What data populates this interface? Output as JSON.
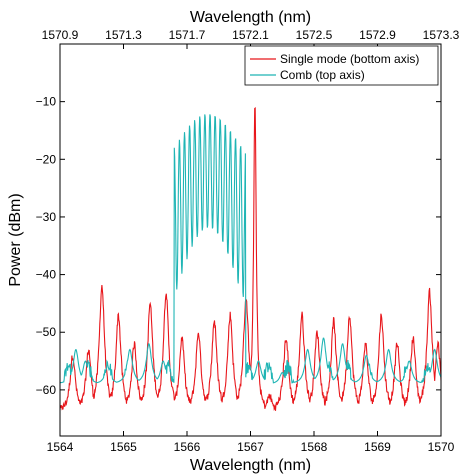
{
  "chart_data": {
    "type": "line",
    "xlabel_bottom": "Wavelength (nm)",
    "xlabel_top": "Wavelength (nm)",
    "ylabel": "Power (dBm)",
    "xlim_bottom": [
      1564,
      1570
    ],
    "xlim_top": [
      1570.9,
      1573.3
    ],
    "ylim": [
      -68,
      0
    ],
    "xticks_bottom": [
      "1564",
      "1565",
      "1566",
      "1567",
      "1568",
      "1569",
      "1570"
    ],
    "xticks_top": [
      "1570.9",
      "1571.3",
      "1571.7",
      "1572.1",
      "1572.5",
      "1572.9",
      "1573.3"
    ],
    "yticks": [
      "−10",
      "−20",
      "−30",
      "−40",
      "−50",
      "−60"
    ],
    "ytick_values": [
      -10,
      -20,
      -30,
      -40,
      -50,
      -60
    ],
    "grid": false,
    "legend_position": "top-right",
    "series": [
      {
        "name": "Single mode (bottom axis)",
        "axis": "bottom",
        "color": "#e8161b",
        "baseline": -64,
        "peak_width": 0.05,
        "peaks": [
          {
            "x": 1564.2,
            "y": -54
          },
          {
            "x": 1564.45,
            "y": -53
          },
          {
            "x": 1564.66,
            "y": -42
          },
          {
            "x": 1564.92,
            "y": -47
          },
          {
            "x": 1565.17,
            "y": -52
          },
          {
            "x": 1565.42,
            "y": -45
          },
          {
            "x": 1565.67,
            "y": -43
          },
          {
            "x": 1565.92,
            "y": -51
          },
          {
            "x": 1566.18,
            "y": -50
          },
          {
            "x": 1566.43,
            "y": -48
          },
          {
            "x": 1566.68,
            "y": -47
          },
          {
            "x": 1566.93,
            "y": -44
          },
          {
            "x": 1567.07,
            "y": -10
          },
          {
            "x": 1567.3,
            "y": -61
          },
          {
            "x": 1567.56,
            "y": -51
          },
          {
            "x": 1567.81,
            "y": -47
          },
          {
            "x": 1568.05,
            "y": -50
          },
          {
            "x": 1568.31,
            "y": -48
          },
          {
            "x": 1568.56,
            "y": -47
          },
          {
            "x": 1568.81,
            "y": -52
          },
          {
            "x": 1569.06,
            "y": -47
          },
          {
            "x": 1569.31,
            "y": -52
          },
          {
            "x": 1569.56,
            "y": -51
          },
          {
            "x": 1569.82,
            "y": -43
          },
          {
            "x": 1569.95,
            "y": -52
          }
        ]
      },
      {
        "name": "Comb (top axis)",
        "axis": "top",
        "color": "#1fb5b5",
        "baseline": -59,
        "comb_x_range": [
          1571.62,
          1572.07
        ],
        "comb_teeth": 14,
        "comb_top": -12,
        "comb_bottom": -32,
        "side_peaks": [
          {
            "x": 1571.0,
            "y": -53
          },
          {
            "x": 1571.06,
            "y": -55
          },
          {
            "x": 1571.2,
            "y": -56
          },
          {
            "x": 1571.34,
            "y": -53
          },
          {
            "x": 1571.46,
            "y": -52
          },
          {
            "x": 1571.55,
            "y": -55
          },
          {
            "x": 1572.15,
            "y": -55
          },
          {
            "x": 1572.3,
            "y": -57
          },
          {
            "x": 1572.46,
            "y": -53
          },
          {
            "x": 1572.56,
            "y": -51
          },
          {
            "x": 1572.68,
            "y": -52
          },
          {
            "x": 1572.83,
            "y": -54
          },
          {
            "x": 1572.97,
            "y": -53
          },
          {
            "x": 1573.1,
            "y": -55
          },
          {
            "x": 1573.26,
            "y": -53
          }
        ]
      }
    ]
  }
}
